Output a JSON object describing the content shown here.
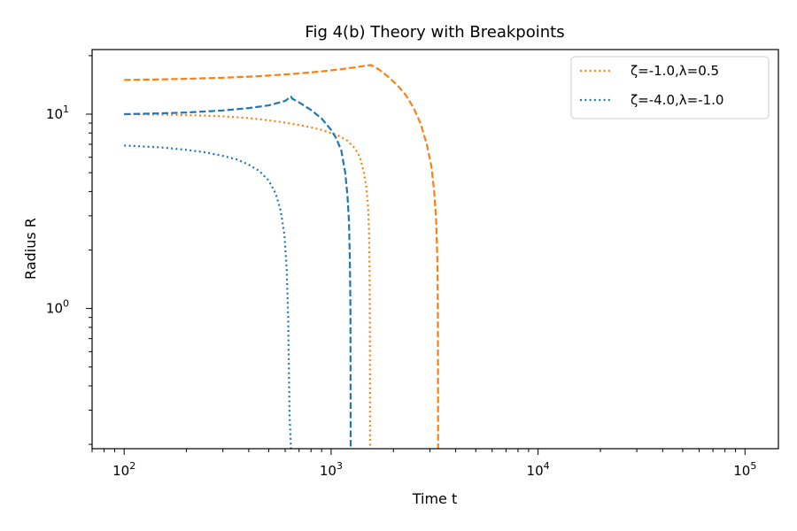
{
  "chart_data": {
    "type": "line",
    "title": "Fig 4(b) Theory with Breakpoints",
    "xlabel": "Time t",
    "ylabel": "Radius R",
    "xscale": "log",
    "yscale": "log",
    "xlim": [
      70,
      145000
    ],
    "ylim": [
      0.19,
      21.5
    ],
    "x_ticks": [
      {
        "value": 100,
        "base": "10",
        "exp": "2"
      },
      {
        "value": 1000,
        "base": "10",
        "exp": "3"
      },
      {
        "value": 10000,
        "base": "10",
        "exp": "4"
      },
      {
        "value": 100000,
        "base": "10",
        "exp": "5"
      }
    ],
    "y_ticks": [
      {
        "value": 1,
        "base": "10",
        "exp": "0"
      },
      {
        "value": 10,
        "base": "10",
        "exp": "1"
      }
    ],
    "grid": false,
    "legend_position": "top-right",
    "legend": [
      {
        "label": "ζ=-1.0,λ=0.5",
        "color": "#ff7f0e",
        "style": "dotted"
      },
      {
        "label": "ζ=-4.0,λ=-1.0",
        "color": "#1f77b4",
        "style": "dotted"
      }
    ],
    "series": [
      {
        "legend_index": 0,
        "color": "#ff7f0e",
        "style": "dotted",
        "points": [
          [
            100,
            10.0
          ],
          [
            150,
            9.95
          ],
          [
            200,
            9.9
          ],
          [
            300,
            9.75
          ],
          [
            400,
            9.55
          ],
          [
            500,
            9.3
          ],
          [
            600,
            9.05
          ],
          [
            700,
            8.8
          ],
          [
            800,
            8.55
          ],
          [
            900,
            8.3
          ],
          [
            1000,
            8.0
          ],
          [
            1100,
            7.7
          ],
          [
            1200,
            7.3
          ],
          [
            1300,
            6.7
          ],
          [
            1380,
            6.0
          ],
          [
            1440,
            5.0
          ],
          [
            1480,
            4.2
          ],
          [
            1510,
            3.3
          ],
          [
            1525,
            2.5
          ],
          [
            1535,
            1.5
          ],
          [
            1540,
            0.8
          ],
          [
            1542,
            0.19
          ]
        ]
      },
      {
        "legend_index": 1,
        "color": "#1f77b4",
        "style": "dotted",
        "points": [
          [
            100,
            6.9
          ],
          [
            150,
            6.75
          ],
          [
            200,
            6.55
          ],
          [
            250,
            6.35
          ],
          [
            300,
            6.1
          ],
          [
            350,
            5.85
          ],
          [
            400,
            5.5
          ],
          [
            450,
            5.1
          ],
          [
            500,
            4.55
          ],
          [
            540,
            3.9
          ],
          [
            570,
            3.2
          ],
          [
            595,
            2.4
          ],
          [
            610,
            1.6
          ],
          [
            620,
            0.9
          ],
          [
            625,
            0.5
          ],
          [
            630,
            0.28
          ],
          [
            640,
            0.19
          ]
        ]
      },
      {
        "color": "#ff7f0e",
        "style": "dashed",
        "points": [
          [
            100,
            15.0
          ],
          [
            150,
            15.1
          ],
          [
            200,
            15.2
          ],
          [
            300,
            15.4
          ],
          [
            400,
            15.6
          ],
          [
            500,
            15.8
          ],
          [
            700,
            16.2
          ],
          [
            900,
            16.6
          ],
          [
            1100,
            17.0
          ],
          [
            1300,
            17.4
          ],
          [
            1400,
            17.6
          ],
          [
            1500,
            17.8
          ],
          [
            1560,
            17.9
          ],
          [
            1700,
            17.0
          ],
          [
            1900,
            15.5
          ],
          [
            2100,
            14.0
          ],
          [
            2300,
            12.5
          ],
          [
            2500,
            10.8
          ],
          [
            2700,
            9.0
          ],
          [
            2900,
            7.0
          ],
          [
            3050,
            5.4
          ],
          [
            3150,
            4.0
          ],
          [
            3220,
            2.8
          ],
          [
            3260,
            1.8
          ],
          [
            3280,
            1.0
          ],
          [
            3290,
            0.19
          ]
        ]
      },
      {
        "color": "#1f77b4",
        "style": "dashed",
        "points": [
          [
            100,
            10.0
          ],
          [
            150,
            10.1
          ],
          [
            200,
            10.2
          ],
          [
            300,
            10.45
          ],
          [
            400,
            10.75
          ],
          [
            500,
            11.1
          ],
          [
            600,
            11.7
          ],
          [
            640,
            12.3
          ],
          [
            650,
            12.0
          ],
          [
            700,
            11.5
          ],
          [
            800,
            10.5
          ],
          [
            900,
            9.5
          ],
          [
            1000,
            8.3
          ],
          [
            1060,
            7.5
          ],
          [
            1120,
            6.5
          ],
          [
            1170,
            5.0
          ],
          [
            1200,
            3.8
          ],
          [
            1220,
            2.8
          ],
          [
            1232,
            1.8
          ],
          [
            1240,
            1.0
          ],
          [
            1243,
            0.19
          ]
        ]
      }
    ]
  }
}
